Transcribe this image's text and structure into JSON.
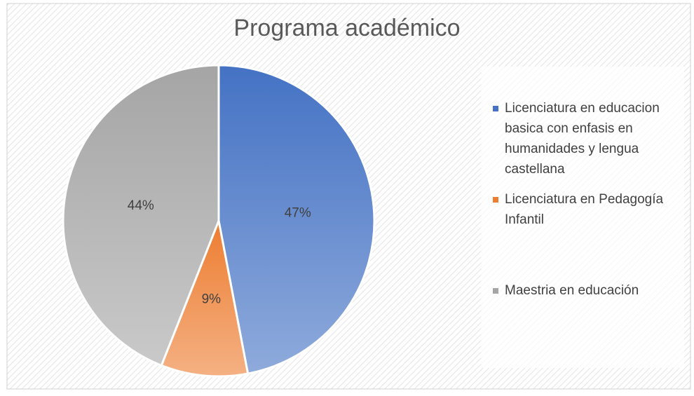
{
  "chart_data": {
    "type": "pie",
    "title": "Programa académico",
    "categories": [
      "Licenciatura en educacion basica con enfasis en humanidades y lengua castellana",
      "Licenciatura en Pedagogía Infantil",
      "Maestria en educación"
    ],
    "values": [
      47,
      9,
      44
    ],
    "value_labels": [
      "47%",
      "9%",
      "44%"
    ],
    "colors": [
      "#4472c4",
      "#ed7d31",
      "#a5a5a5"
    ],
    "legend": "right"
  }
}
